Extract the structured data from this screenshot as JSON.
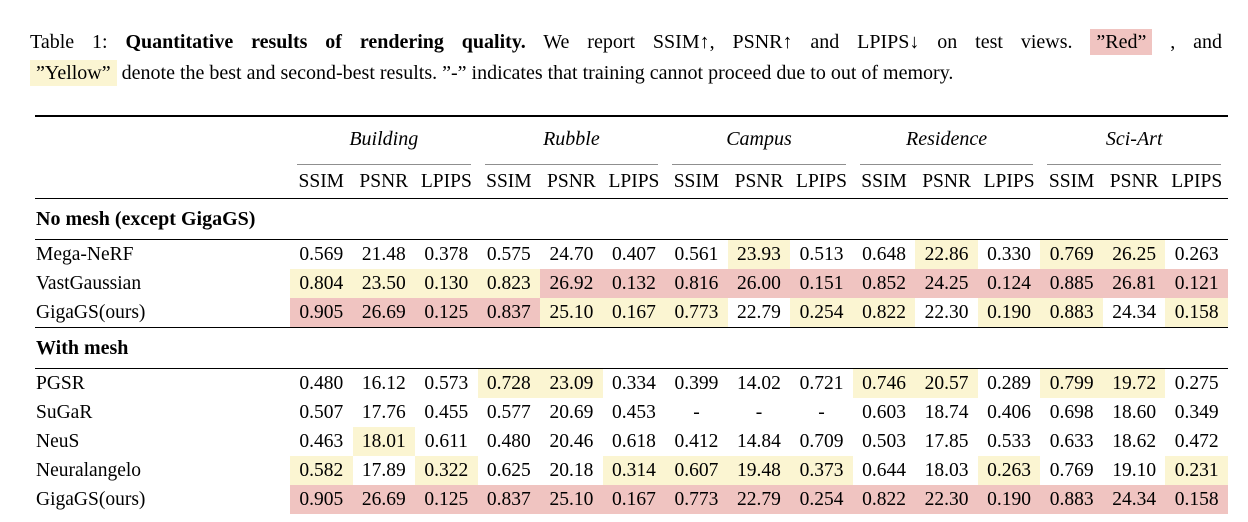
{
  "caption": {
    "label": "Table 1:",
    "title_bold": "Quantitative results of rendering quality.",
    "body1": "We report SSIM↑, PSNR↑ and LPIPS↓ on test views.",
    "red_label": "”Red”",
    "after_red": ", and",
    "yellow_label": "”Yellow”",
    "body2": "denote the best and second-best results. ”-” indicates that training cannot proceed due to out of memory."
  },
  "legend_colors": {
    "best": "#F0C4C1",
    "second_best": "#FBF5D2"
  },
  "table": {
    "groups": [
      "Building",
      "Rubble",
      "Campus",
      "Residence",
      "Sci-Art"
    ],
    "metrics": [
      "SSIM",
      "PSNR",
      "LPIPS"
    ],
    "sections": [
      {
        "header": "No mesh (except GigaGS)",
        "rows": [
          {
            "method": "Mega-NeRF",
            "values": [
              "0.569",
              "21.48",
              "0.378",
              "0.575",
              "24.70",
              "0.407",
              "0.561",
              "23.93",
              "0.513",
              "0.648",
              "22.86",
              "0.330",
              "0.769",
              "26.25",
              "0.263"
            ],
            "hl": [
              "",
              "",
              "",
              "",
              "",
              "",
              "",
              "y",
              "",
              "",
              "y",
              "",
              "y",
              "y",
              ""
            ]
          },
          {
            "method": "VastGaussian",
            "values": [
              "0.804",
              "23.50",
              "0.130",
              "0.823",
              "26.92",
              "0.132",
              "0.816",
              "26.00",
              "0.151",
              "0.852",
              "24.25",
              "0.124",
              "0.885",
              "26.81",
              "0.121"
            ],
            "hl": [
              "y",
              "y",
              "y",
              "y",
              "r",
              "r",
              "r",
              "r",
              "r",
              "r",
              "r",
              "r",
              "r",
              "r",
              "r"
            ]
          },
          {
            "method": "GigaGS(ours)",
            "values": [
              "0.905",
              "26.69",
              "0.125",
              "0.837",
              "25.10",
              "0.167",
              "0.773",
              "22.79",
              "0.254",
              "0.822",
              "22.30",
              "0.190",
              "0.883",
              "24.34",
              "0.158"
            ],
            "hl": [
              "r",
              "r",
              "r",
              "r",
              "y",
              "y",
              "y",
              "",
              "y",
              "y",
              "",
              "y",
              "y",
              "",
              "y"
            ]
          }
        ]
      },
      {
        "header": "With mesh",
        "rows": [
          {
            "method": "PGSR",
            "values": [
              "0.480",
              "16.12",
              "0.573",
              "0.728",
              "23.09",
              "0.334",
              "0.399",
              "14.02",
              "0.721",
              "0.746",
              "20.57",
              "0.289",
              "0.799",
              "19.72",
              "0.275"
            ],
            "hl": [
              "",
              "",
              "",
              "y",
              "y",
              "",
              "",
              "",
              "",
              "y",
              "y",
              "",
              "y",
              "y",
              ""
            ]
          },
          {
            "method": "SuGaR",
            "values": [
              "0.507",
              "17.76",
              "0.455",
              "0.577",
              "20.69",
              "0.453",
              "-",
              "-",
              "-",
              "0.603",
              "18.74",
              "0.406",
              "0.698",
              "18.60",
              "0.349"
            ],
            "hl": [
              "",
              "",
              "",
              "",
              "",
              "",
              "",
              "",
              "",
              "",
              "",
              "",
              "",
              "",
              ""
            ]
          },
          {
            "method": "NeuS",
            "values": [
              "0.463",
              "18.01",
              "0.611",
              "0.480",
              "20.46",
              "0.618",
              "0.412",
              "14.84",
              "0.709",
              "0.503",
              "17.85",
              "0.533",
              "0.633",
              "18.62",
              "0.472"
            ],
            "hl": [
              "",
              "y",
              "",
              "",
              "",
              "",
              "",
              "",
              "",
              "",
              "",
              "",
              "",
              "",
              ""
            ]
          },
          {
            "method": "Neuralangelo",
            "values": [
              "0.582",
              "17.89",
              "0.322",
              "0.625",
              "20.18",
              "0.314",
              "0.607",
              "19.48",
              "0.373",
              "0.644",
              "18.03",
              "0.263",
              "0.769",
              "19.10",
              "0.231"
            ],
            "hl": [
              "y",
              "",
              "y",
              "",
              "",
              "y",
              "y",
              "y",
              "y",
              "",
              "",
              "y",
              "",
              "",
              "y"
            ]
          },
          {
            "method": "GigaGS(ours)",
            "values": [
              "0.905",
              "26.69",
              "0.125",
              "0.837",
              "25.10",
              "0.167",
              "0.773",
              "22.79",
              "0.254",
              "0.822",
              "22.30",
              "0.190",
              "0.883",
              "24.34",
              "0.158"
            ],
            "hl": [
              "r",
              "r",
              "r",
              "r",
              "r",
              "r",
              "r",
              "r",
              "r",
              "r",
              "r",
              "r",
              "r",
              "r",
              "r"
            ]
          }
        ]
      }
    ]
  }
}
